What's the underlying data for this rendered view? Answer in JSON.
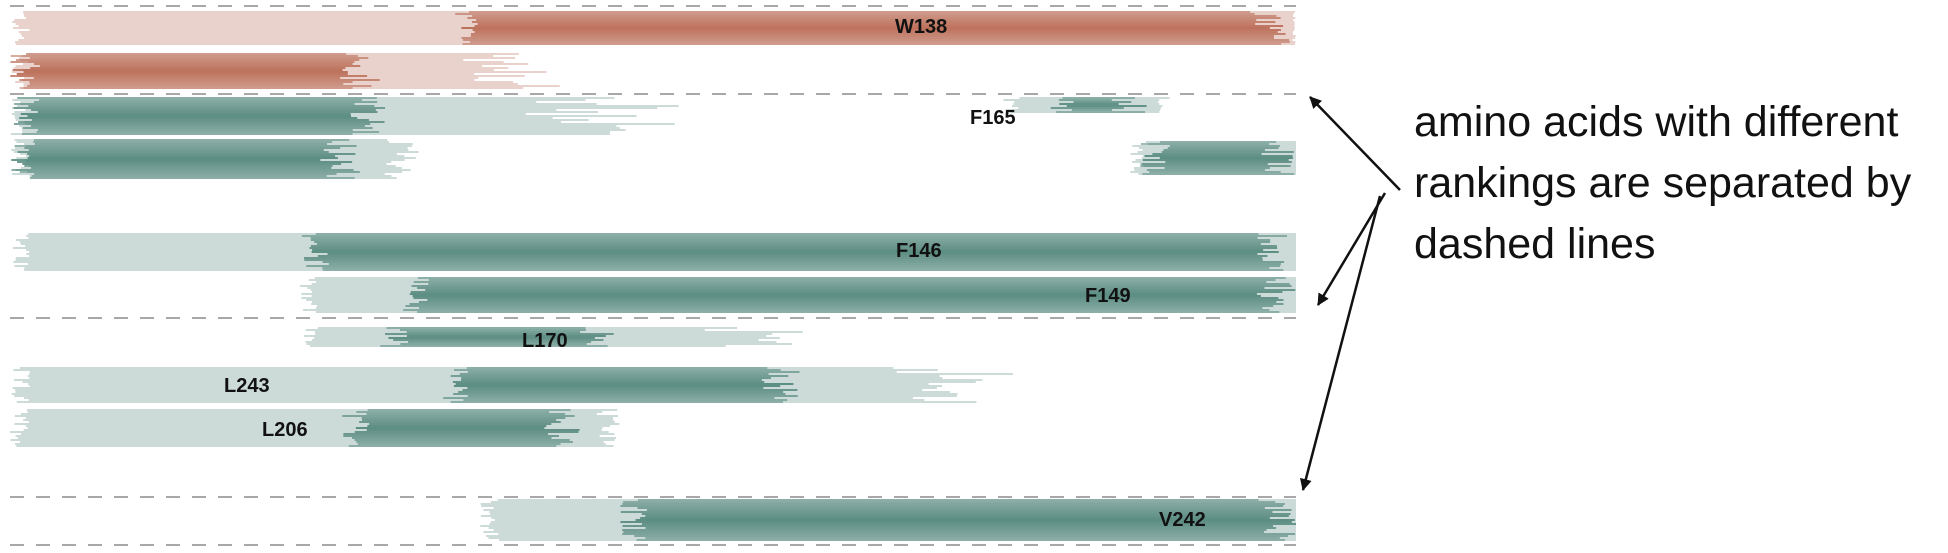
{
  "colors": {
    "background": "#ffffff",
    "rank1": "#a8462a",
    "rank2": "#2a6a5c",
    "dashed": "#8c8c8c",
    "label": "#111111",
    "arrow": "#111111"
  },
  "residues": [
    {
      "label": "W138",
      "color": "rank1"
    },
    {
      "label": "F165",
      "color": "rank2"
    },
    {
      "label": "F146",
      "color": "rank2"
    },
    {
      "label": "F149",
      "color": "rank2"
    },
    {
      "label": "L170",
      "color": "rank2"
    },
    {
      "label": "L243",
      "color": "rank2"
    },
    {
      "label": "L206",
      "color": "rank2"
    },
    {
      "label": "V242",
      "color": "rank2"
    }
  ],
  "annotation": {
    "lines": [
      "amino acids with different",
      "rankings are separated by",
      "dashed lines"
    ]
  }
}
